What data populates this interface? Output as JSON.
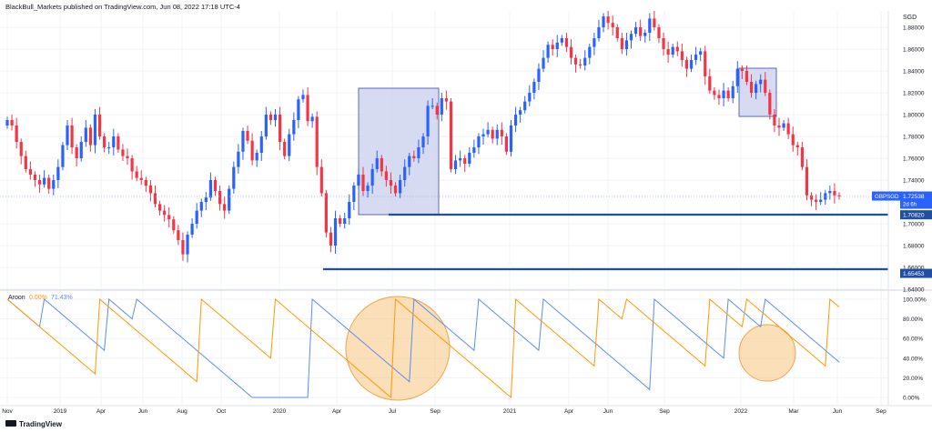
{
  "header": {
    "publisher_line": "BlackBull_Markets published on TradingView.com, Jun 08, 2022 17:18 UTC-4",
    "currency": "SGD"
  },
  "footer": {
    "logo_text": "TradingView"
  },
  "colors": {
    "up": "#2962ff",
    "down": "#f23645",
    "grid": "#f0f3fa",
    "axis_text": "#131722",
    "level_line": "#1e4fa5",
    "box_fill": "#c9cfec",
    "box_stroke": "#5b6bb5",
    "aroon_up": "#ff9800",
    "aroon_down": "#5b8def",
    "circle_fill": "#f7c98b"
  },
  "price_axis_labels": [
    "1.88000",
    "1.86000",
    "1.84000",
    "1.82000",
    "1.80000",
    "1.78000",
    "1.76000",
    "1.74000",
    "1.70000",
    "1.68000",
    "1.66000",
    "1.64000"
  ],
  "price_tags": [
    {
      "label": "GBPSGD",
      "value": "1.72538",
      "sub": "2d 6h",
      "kind": "current"
    },
    {
      "label": "",
      "value": "1.70820",
      "sub": "",
      "kind": "level"
    },
    {
      "label": "",
      "value": "1.65453",
      "sub": "",
      "kind": "level"
    }
  ],
  "aroon_axis_labels": [
    "100.00%",
    "80.00%",
    "60.00%",
    "40.00%",
    "20.00%",
    "0.00%"
  ],
  "aroon_legend": {
    "name": "Aroon",
    "up_value": "0.00%",
    "down_value": "71.43%"
  },
  "time_axis_labels": [
    "Nov",
    "2019",
    "Apr",
    "Jun",
    "Aug",
    "Oct",
    "2020",
    "Apr",
    "Jul",
    "Sep",
    "2021",
    "Apr",
    "Jun",
    "Sep",
    "2022",
    "Mar",
    "Jun",
    "Sep"
  ],
  "chart_data": [
    {
      "type": "candlestick",
      "symbol": "GBPSGD",
      "timeframe": "weekly",
      "ylim": [
        1.64,
        1.895
      ],
      "grid": true,
      "current_price": 1.72538,
      "horizontal_levels": [
        1.7082,
        1.65453
      ],
      "closes_approx": [
        1.795,
        1.79,
        1.775,
        1.762,
        1.75,
        1.745,
        1.74,
        1.736,
        1.742,
        1.732,
        1.74,
        1.752,
        1.772,
        1.79,
        1.77,
        1.76,
        1.775,
        1.788,
        1.772,
        1.8,
        1.78,
        1.77,
        1.77,
        1.78,
        1.768,
        1.762,
        1.76,
        1.748,
        1.742,
        1.74,
        1.735,
        1.728,
        1.718,
        1.712,
        1.708,
        1.704,
        1.694,
        1.685,
        1.672,
        1.69,
        1.7,
        1.712,
        1.72,
        1.724,
        1.74,
        1.73,
        1.718,
        1.712,
        1.732,
        1.752,
        1.766,
        1.785,
        1.776,
        1.758,
        1.765,
        1.78,
        1.8,
        1.795,
        1.8,
        1.775,
        1.762,
        1.782,
        1.795,
        1.814,
        1.818,
        1.794,
        1.798,
        1.752,
        1.728,
        1.692,
        1.68,
        1.705,
        1.7,
        1.705,
        1.72,
        1.735,
        1.745,
        1.73,
        1.735,
        1.75,
        1.76,
        1.748,
        1.74,
        1.735,
        1.728,
        1.74,
        1.752,
        1.762,
        1.76,
        1.77,
        1.78,
        1.808,
        1.808,
        1.8,
        1.815,
        1.812,
        1.75,
        1.758,
        1.76,
        1.755,
        1.765,
        1.77,
        1.78,
        1.782,
        1.786,
        1.778,
        1.786,
        1.78,
        1.766,
        1.79,
        1.8,
        1.804,
        1.812,
        1.82,
        1.83,
        1.842,
        1.852,
        1.864,
        1.86,
        1.866,
        1.87,
        1.862,
        1.852,
        1.846,
        1.845,
        1.852,
        1.862,
        1.87,
        1.88,
        1.89,
        1.884,
        1.88,
        1.87,
        1.86,
        1.868,
        1.874,
        1.88,
        1.872,
        1.875,
        1.888,
        1.88,
        1.87,
        1.86,
        1.855,
        1.862,
        1.858,
        1.85,
        1.842,
        1.85,
        1.855,
        1.858,
        1.835,
        1.822,
        1.818,
        1.815,
        1.822,
        1.815,
        1.826,
        1.842,
        1.84,
        1.83,
        1.82,
        1.828,
        1.832,
        1.82,
        1.8,
        1.79,
        1.788,
        1.792,
        1.782,
        1.772,
        1.77,
        1.752,
        1.726,
        1.722,
        1.72,
        1.722,
        1.728,
        1.73,
        1.726,
        1.725
      ]
    },
    {
      "type": "line",
      "title": "Aroon",
      "ylim": [
        0,
        100
      ],
      "series": [
        {
          "name": "Aroon Up",
          "values_approx": "sawtooth 0–100%, last 0.00%"
        },
        {
          "name": "Aroon Down",
          "values_approx": "sawtooth 0–100%, last 71.43%"
        }
      ]
    }
  ]
}
